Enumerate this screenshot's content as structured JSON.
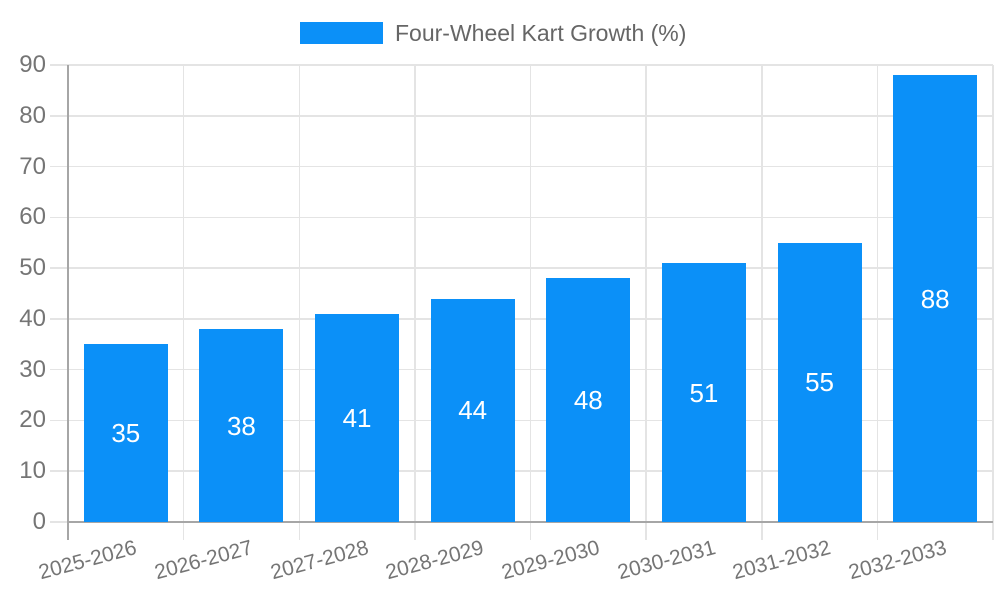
{
  "chart_data": {
    "type": "bar",
    "title": "Four-Wheel Kart Growth (%)",
    "legend_position": "top",
    "categories": [
      "2025-2026",
      "2026-2027",
      "2027-2028",
      "2028-2029",
      "2029-2030",
      "2030-2031",
      "2031-2032",
      "2032-2033"
    ],
    "series": [
      {
        "name": "Four-Wheel Kart Growth (%)",
        "values": [
          35,
          38,
          41,
          44,
          48,
          51,
          55,
          88
        ]
      }
    ],
    "value_labels": [
      "35",
      "38",
      "41",
      "44",
      "48",
      "51",
      "55",
      "88"
    ],
    "xlabel": "",
    "ylabel": "",
    "ylim": [
      0,
      90
    ],
    "yticks": [
      0,
      10,
      20,
      30,
      40,
      50,
      60,
      70,
      80,
      90
    ],
    "grid": true,
    "bar_label_position": "inside-center"
  },
  "legend": {
    "label": "Four-Wheel Kart Growth (%)"
  },
  "colors": {
    "bar": "#0b90f8",
    "grid": "#e4e4e4",
    "axis": "#a6a6a6",
    "tick_text": "#757575",
    "value_text": "#ffffff",
    "legend_text": "#666666",
    "background": "#ffffff"
  }
}
